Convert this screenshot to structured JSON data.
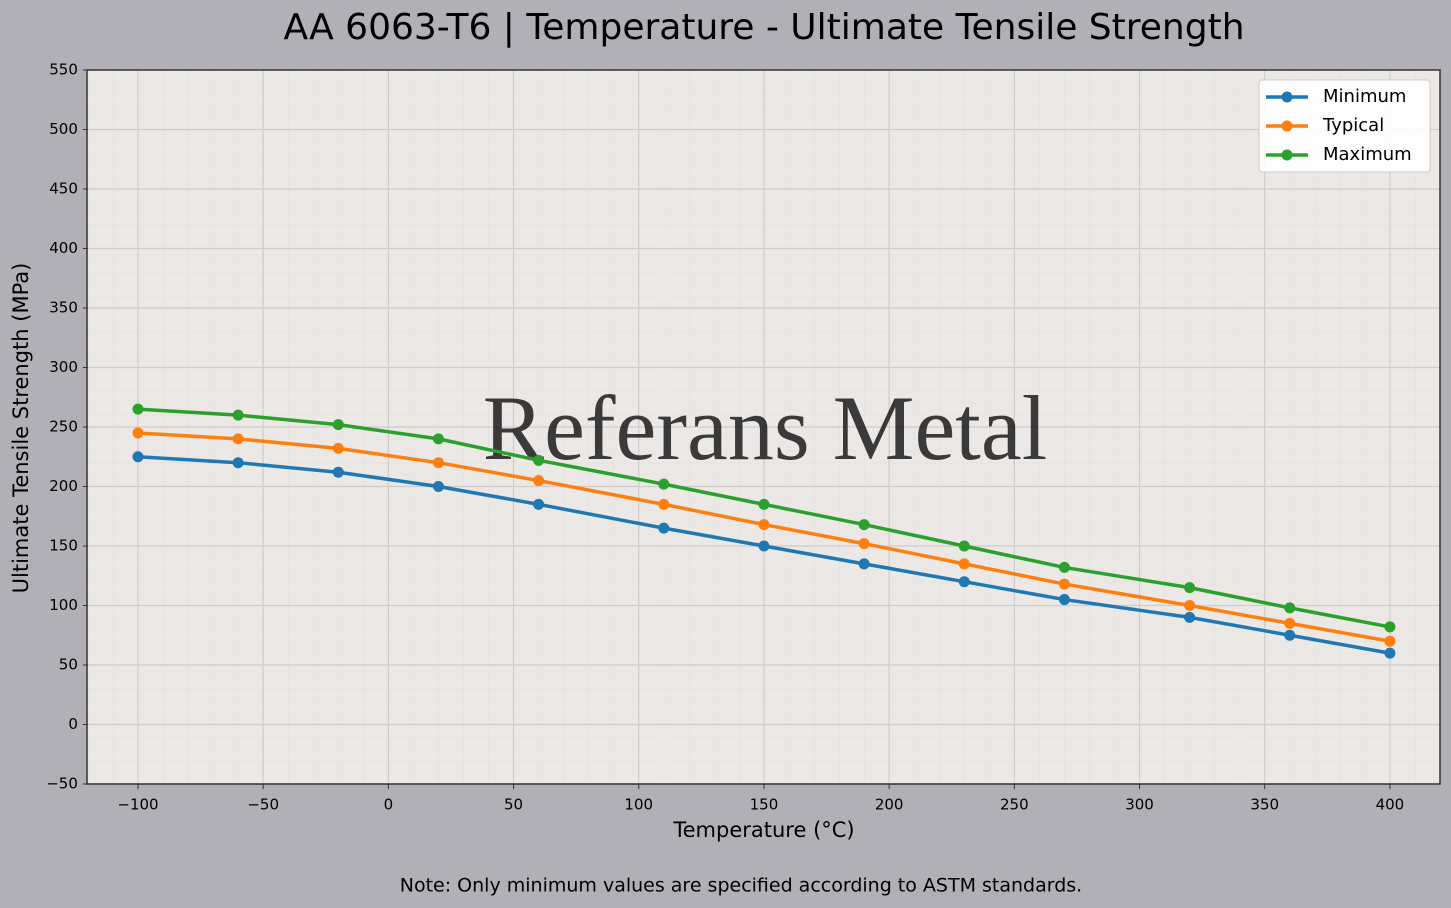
{
  "chart_data": {
    "type": "line",
    "title": "AA 6063-T6 | Temperature - Ultimate Tensile Strength",
    "x_label": "Temperature (°C)",
    "y_label": "Ultimate Tensile Strength (MPa)",
    "watermark": "Referans Metal",
    "note": "Note: Only minimum values are specified according to ASTM standards.",
    "x": [
      -100,
      -60,
      -20,
      20,
      60,
      110,
      150,
      190,
      230,
      270,
      320,
      360,
      400
    ],
    "series": [
      {
        "name": "Minimum",
        "color": "#1f77b4",
        "values": [
          225,
          220,
          212,
          200,
          185,
          165,
          150,
          135,
          120,
          105,
          90,
          75,
          60
        ]
      },
      {
        "name": "Typical",
        "color": "#ff7f0e",
        "values": [
          245,
          240,
          232,
          220,
          205,
          185,
          168,
          152,
          135,
          118,
          100,
          85,
          70
        ]
      },
      {
        "name": "Maximum",
        "color": "#2ca02c",
        "values": [
          265,
          260,
          252,
          240,
          222,
          202,
          185,
          168,
          150,
          132,
          115,
          98,
          82
        ]
      }
    ],
    "xlim": [
      -120,
      420
    ],
    "ylim": [
      -50,
      550
    ],
    "xticks": [
      {
        "value": -100,
        "label": "−100"
      },
      {
        "value": -50,
        "label": "−50"
      },
      0,
      50,
      100,
      150,
      200,
      250,
      300,
      350,
      400
    ],
    "yticks": [
      {
        "value": -50,
        "label": "−50"
      },
      0,
      50,
      100,
      150,
      200,
      250,
      300,
      350,
      400,
      450,
      500,
      550
    ],
    "grid": true,
    "legend": "upper right"
  }
}
